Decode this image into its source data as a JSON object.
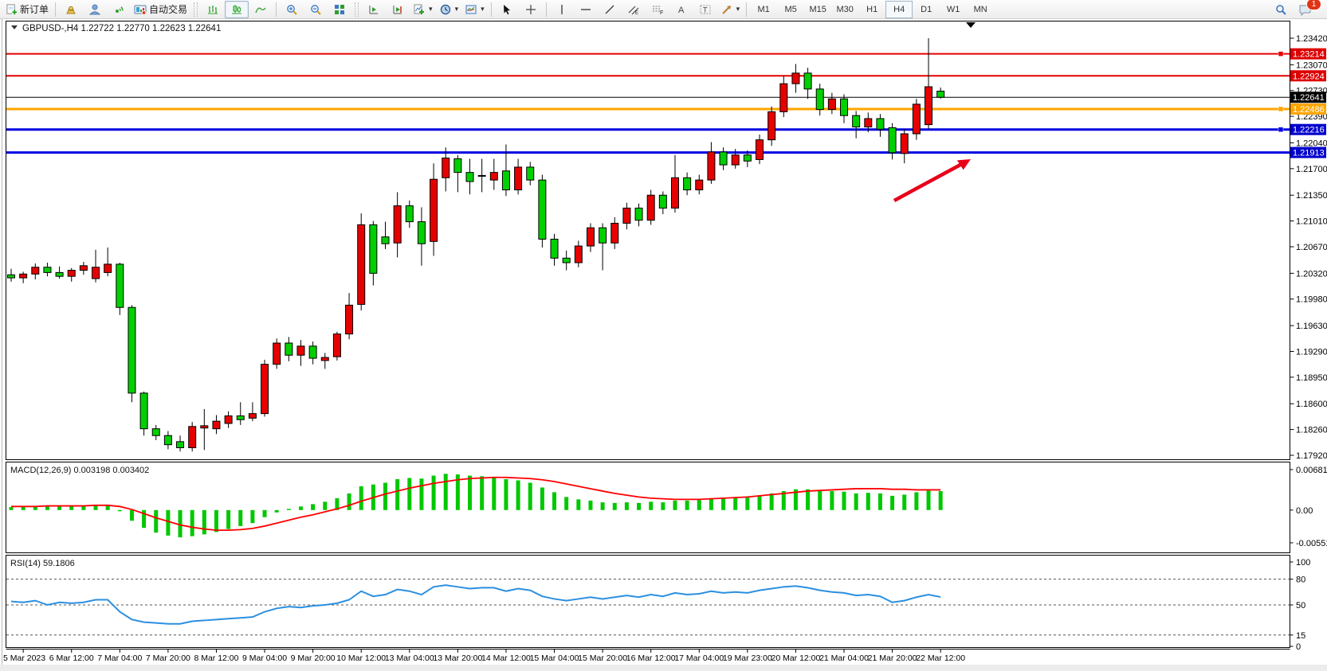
{
  "toolbar": {
    "new_order_label": "新订单",
    "auto_trading_label": "自动交易",
    "timeframes": [
      "M1",
      "M5",
      "M15",
      "M30",
      "H1",
      "H4",
      "D1",
      "W1",
      "MN"
    ],
    "active_timeframe": "H4",
    "notification_count": "1"
  },
  "chart": {
    "title": "GBPUSD-,H4  1.22722 1.22770 1.22623 1.22641",
    "symbol": "GBPUSD-,H4",
    "ohlc": {
      "open": "1.22722",
      "high": "1.22770",
      "low": "1.22623",
      "close": "1.22641"
    },
    "price_axis": [
      "1.23420",
      "1.23070",
      "1.22730",
      "1.22390",
      "1.22040",
      "1.21700",
      "1.21350",
      "1.21010",
      "1.20670",
      "1.20320",
      "1.19980",
      "1.19630",
      "1.19290",
      "1.18950",
      "1.18600",
      "1.18260",
      "1.17920"
    ],
    "price_axis_values": [
      1.2342,
      1.2307,
      1.2273,
      1.2239,
      1.2204,
      1.217,
      1.2135,
      1.2101,
      1.2067,
      1.2032,
      1.1998,
      1.1963,
      1.1929,
      1.1895,
      1.186,
      1.1826,
      1.1792
    ],
    "time_axis": [
      "5 Mar 2023",
      "6 Mar 12:00",
      "7 Mar 04:00",
      "7 Mar 20:00",
      "8 Mar 12:00",
      "9 Mar 04:00",
      "9 Mar 20:00",
      "10 Mar 12:00",
      "13 Mar 04:00",
      "13 Mar 20:00",
      "14 Mar 12:00",
      "15 Mar 04:00",
      "15 Mar 20:00",
      "16 Mar 12:00",
      "17 Mar 04:00",
      "19 Mar 23:00",
      "20 Mar 12:00",
      "21 Mar 04:00",
      "21 Mar 20:00",
      "22 Mar 12:00"
    ],
    "price_lines": [
      {
        "price": 1.23214,
        "label": "1.23214",
        "color": "line_red",
        "width": 2,
        "handle": true,
        "label_bg": "label_red_bg"
      },
      {
        "price": 1.22924,
        "label": "1.22924",
        "color": "line_red",
        "width": 2,
        "handle": false,
        "label_bg": "label_red_bg"
      },
      {
        "price": 1.22486,
        "label": "1.22486",
        "color": "line_orange",
        "width": 3,
        "handle": true,
        "label_bg": "label_orange_bg"
      },
      {
        "price": 1.22216,
        "label": "1.22216",
        "color": "line_blue",
        "width": 3,
        "handle": true,
        "label_bg": "label_blue_bg"
      },
      {
        "price": 1.21913,
        "label": "1.21913",
        "color": "line_blue",
        "width": 3,
        "handle": false,
        "label_bg": "label_blue_bg"
      }
    ],
    "current_price_line": {
      "price": 1.22641,
      "label": "1.22641"
    },
    "candles": [
      [
        1.203,
        1.2038,
        1.2021,
        1.2026
      ],
      [
        1.2026,
        1.2034,
        1.2019,
        1.2031
      ],
      [
        1.2031,
        1.2045,
        1.2024,
        1.204
      ],
      [
        1.204,
        1.2046,
        1.2028,
        1.2033
      ],
      [
        1.2033,
        1.2041,
        1.2025,
        1.2028
      ],
      [
        1.2028,
        1.2039,
        1.2021,
        1.2036
      ],
      [
        1.2036,
        1.2047,
        1.203,
        1.2042
      ],
      [
        1.2025,
        1.2063,
        1.202,
        1.204
      ],
      [
        1.2033,
        1.2066,
        1.2028,
        1.2044
      ],
      [
        1.2044,
        1.2046,
        1.1977,
        1.1987
      ],
      [
        1.1987,
        1.199,
        1.1862,
        1.1874
      ],
      [
        1.1874,
        1.1876,
        1.1818,
        1.1827
      ],
      [
        1.1827,
        1.1832,
        1.1812,
        1.1818
      ],
      [
        1.1818,
        1.1824,
        1.18,
        1.1806
      ],
      [
        1.181,
        1.1818,
        1.1797,
        1.1802
      ],
      [
        1.1802,
        1.1836,
        1.1797,
        1.183
      ],
      [
        1.1828,
        1.1853,
        1.1799,
        1.1831
      ],
      [
        1.1827,
        1.1845,
        1.182,
        1.1837
      ],
      [
        1.1834,
        1.185,
        1.1828,
        1.1844
      ],
      [
        1.1844,
        1.1862,
        1.1832,
        1.1839
      ],
      [
        1.1841,
        1.1862,
        1.1837,
        1.1847
      ],
      [
        1.1847,
        1.1918,
        1.1843,
        1.1912
      ],
      [
        1.1912,
        1.1946,
        1.1906,
        1.194
      ],
      [
        1.194,
        1.1948,
        1.1916,
        1.1924
      ],
      [
        1.1924,
        1.1944,
        1.191,
        1.1936
      ],
      [
        1.1936,
        1.1942,
        1.1912,
        1.192
      ],
      [
        1.1917,
        1.1927,
        1.1906,
        1.1921
      ],
      [
        1.1922,
        1.1955,
        1.1917,
        1.1952
      ],
      [
        1.1952,
        1.2006,
        1.1945,
        1.199
      ],
      [
        1.1991,
        1.2111,
        1.1983,
        1.2096
      ],
      [
        1.2096,
        1.2101,
        1.2016,
        1.2032
      ],
      [
        1.208,
        1.21,
        1.2064,
        1.2071
      ],
      [
        1.2072,
        1.2139,
        1.2053,
        1.2121
      ],
      [
        1.2121,
        1.2128,
        1.2092,
        1.21
      ],
      [
        1.21,
        1.2119,
        1.2042,
        1.2071
      ],
      [
        1.2074,
        1.2177,
        1.2055,
        1.2156
      ],
      [
        1.2158,
        1.2198,
        1.214,
        1.2184
      ],
      [
        1.2183,
        1.2188,
        1.2139,
        1.2165
      ],
      [
        1.2165,
        1.2183,
        1.2136,
        1.2153
      ],
      [
        1.216,
        1.2183,
        1.2139,
        1.2161
      ],
      [
        1.2155,
        1.2183,
        1.2142,
        1.2165
      ],
      [
        1.2167,
        1.2202,
        1.2134,
        1.2142
      ],
      [
        1.2142,
        1.2183,
        1.2136,
        1.2172
      ],
      [
        1.2172,
        1.2179,
        1.2148,
        1.2155
      ],
      [
        1.2155,
        1.2162,
        1.2066,
        1.2077
      ],
      [
        1.2077,
        1.2084,
        1.2042,
        1.2052
      ],
      [
        1.2052,
        1.2062,
        1.2036,
        1.2046
      ],
      [
        1.2046,
        1.2075,
        1.204,
        1.2068
      ],
      [
        1.2068,
        1.2098,
        1.206,
        1.2092
      ],
      [
        1.2092,
        1.2098,
        1.2036,
        1.2072
      ],
      [
        1.2072,
        1.2106,
        1.2064,
        1.2098
      ],
      [
        1.2098,
        1.2125,
        1.209,
        1.2118
      ],
      [
        1.2118,
        1.2124,
        1.2094,
        1.2102
      ],
      [
        1.2102,
        1.2142,
        1.2096,
        1.2135
      ],
      [
        1.2135,
        1.214,
        1.211,
        1.2118
      ],
      [
        1.2118,
        1.2188,
        1.2112,
        1.2158
      ],
      [
        1.2158,
        1.2165,
        1.2135,
        1.2142
      ],
      [
        1.2142,
        1.2162,
        1.2136,
        1.2155
      ],
      [
        1.2155,
        1.2205,
        1.215,
        1.2192
      ],
      [
        1.2192,
        1.2198,
        1.2168,
        1.2175
      ],
      [
        1.2175,
        1.2196,
        1.217,
        1.2188
      ],
      [
        1.2188,
        1.2194,
        1.2172,
        1.218
      ],
      [
        1.2182,
        1.2215,
        1.2176,
        1.2208
      ],
      [
        1.2208,
        1.2252,
        1.22,
        1.2245
      ],
      [
        1.2245,
        1.2292,
        1.2238,
        1.2282
      ],
      [
        1.2282,
        1.2308,
        1.227,
        1.2296
      ],
      [
        1.2296,
        1.2303,
        1.2262,
        1.2275
      ],
      [
        1.2275,
        1.2282,
        1.224,
        1.2248
      ],
      [
        1.2248,
        1.227,
        1.2242,
        1.2262
      ],
      [
        1.2262,
        1.2268,
        1.223,
        1.224
      ],
      [
        1.224,
        1.2246,
        1.221,
        1.2225
      ],
      [
        1.2225,
        1.2244,
        1.2218,
        1.2236
      ],
      [
        1.2236,
        1.2242,
        1.2212,
        1.2222
      ],
      [
        1.2224,
        1.223,
        1.2182,
        1.2191
      ],
      [
        1.219,
        1.2222,
        1.2177,
        1.2216
      ],
      [
        1.2216,
        1.2262,
        1.2208,
        1.2255
      ],
      [
        1.2228,
        1.2342,
        1.2222,
        1.2278
      ],
      [
        1.22722,
        1.2277,
        1.22623,
        1.22641
      ]
    ]
  },
  "macd": {
    "label": "MACD(12,26,9) 0.003198 0.003402",
    "axis": [
      "0.006817",
      "0.00",
      "-0.005518"
    ],
    "axis_values": [
      0.006817,
      0.0,
      -0.005518
    ],
    "hist": [
      0.0005,
      0.0006,
      0.0007,
      0.0007,
      0.0006,
      0.0006,
      0.0007,
      0.0009,
      0.0008,
      -0.0002,
      -0.0018,
      -0.003,
      -0.0038,
      -0.0043,
      -0.0046,
      -0.0044,
      -0.0041,
      -0.0037,
      -0.0032,
      -0.0027,
      -0.0022,
      -0.0012,
      -0.0004,
      0.0002,
      0.0006,
      0.001,
      0.0014,
      0.002,
      0.0028,
      0.004,
      0.0043,
      0.0046,
      0.0052,
      0.0054,
      0.0053,
      0.0058,
      0.0061,
      0.006,
      0.0058,
      0.0057,
      0.0056,
      0.0052,
      0.005,
      0.0046,
      0.0038,
      0.003,
      0.0022,
      0.0018,
      0.0016,
      0.0013,
      0.0012,
      0.0013,
      0.0012,
      0.0014,
      0.0013,
      0.0016,
      0.0016,
      0.0017,
      0.002,
      0.002,
      0.0021,
      0.0021,
      0.0024,
      0.0028,
      0.0032,
      0.0035,
      0.0035,
      0.0033,
      0.0032,
      0.0031,
      0.0028,
      0.0029,
      0.0028,
      0.0024,
      0.0026,
      0.003,
      0.0033,
      0.0032
    ],
    "signal": [
      0.0006,
      0.0006,
      0.0006,
      0.0007,
      0.0007,
      0.0007,
      0.0007,
      0.0008,
      0.0008,
      0.0006,
      0.0001,
      -0.0006,
      -0.0013,
      -0.0019,
      -0.0025,
      -0.0029,
      -0.0032,
      -0.0034,
      -0.0034,
      -0.0033,
      -0.0031,
      -0.0027,
      -0.0022,
      -0.0017,
      -0.0012,
      -0.0008,
      -0.0003,
      0.0002,
      0.0008,
      0.0015,
      0.0021,
      0.0027,
      0.0032,
      0.0037,
      0.0041,
      0.0045,
      0.0048,
      0.0051,
      0.0053,
      0.0054,
      0.0055,
      0.0055,
      0.0054,
      0.0053,
      0.0051,
      0.0048,
      0.0044,
      0.004,
      0.0036,
      0.0032,
      0.0028,
      0.0025,
      0.0022,
      0.002,
      0.0019,
      0.0018,
      0.0018,
      0.0018,
      0.0019,
      0.002,
      0.0021,
      0.0022,
      0.0024,
      0.0026,
      0.0028,
      0.003,
      0.0032,
      0.0033,
      0.0034,
      0.0035,
      0.0036,
      0.0036,
      0.0036,
      0.0035,
      0.0035,
      0.0034,
      0.0034,
      0.0034
    ]
  },
  "rsi": {
    "label": "RSI(14) 59.1806",
    "axis": [
      "100",
      "80",
      "50",
      "15",
      "0"
    ],
    "axis_values": [
      100,
      80,
      50,
      15,
      0
    ],
    "levels": [
      80,
      50,
      15
    ],
    "values": [
      54,
      53,
      55,
      50,
      53,
      52,
      53,
      56,
      56,
      42,
      33,
      30,
      29,
      28,
      28,
      31,
      32,
      33,
      34,
      35,
      36,
      42,
      46,
      48,
      47,
      49,
      50,
      52,
      56,
      66,
      60,
      62,
      68,
      66,
      62,
      71,
      73,
      71,
      69,
      70,
      70,
      66,
      69,
      67,
      60,
      57,
      55,
      57,
      59,
      57,
      59,
      61,
      59,
      62,
      60,
      64,
      62,
      63,
      66,
      64,
      65,
      64,
      67,
      69,
      71,
      72,
      70,
      67,
      65,
      64,
      61,
      62,
      60,
      53,
      55,
      59,
      62,
      59.2
    ]
  },
  "colors": {
    "bull": "#e60000",
    "bear": "#00d000",
    "wick": "#000000",
    "macd_hist": "#00c800",
    "macd_signal": "#ff0000",
    "rsi_line": "#2b8fe0",
    "line_red": "#e60000",
    "line_orange": "#ffa500",
    "line_blue": "#0000e0",
    "label_red_bg": "#dd0000",
    "label_orange_bg": "#ffa500",
    "label_blue_bg": "#0000cc",
    "label_black_bg": "#000000",
    "arrow": "#e8001a"
  }
}
